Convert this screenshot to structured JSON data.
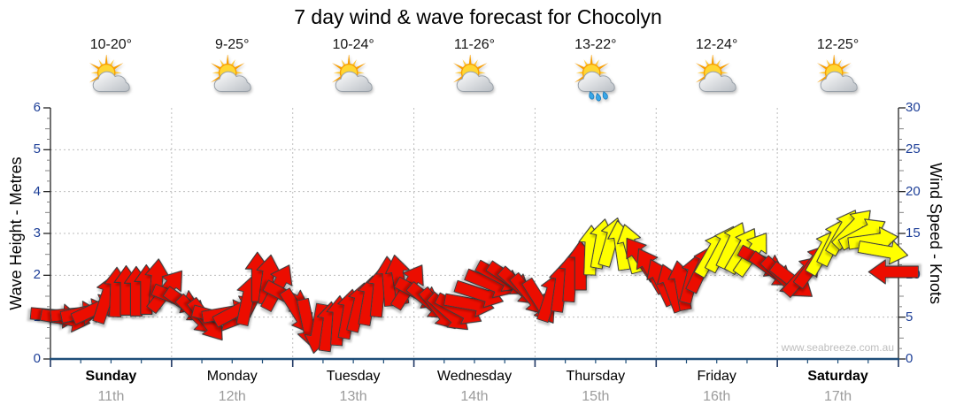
{
  "title": "7 day wind & wave forecast for Chocolyn",
  "watermark": "www.seabreeze.com.au",
  "header": {
    "days": [
      {
        "name": "Sunday",
        "date": "11th",
        "temp_range": "10-20°",
        "icon": "partly-cloudy",
        "weekend": true
      },
      {
        "name": "Monday",
        "date": "12th",
        "temp_range": "9-25°",
        "icon": "partly-cloudy",
        "weekend": false
      },
      {
        "name": "Tuesday",
        "date": "13th",
        "temp_range": "10-24°",
        "icon": "partly-cloudy",
        "weekend": false
      },
      {
        "name": "Wednesday",
        "date": "14th",
        "temp_range": "11-26°",
        "icon": "partly-cloudy",
        "weekend": false
      },
      {
        "name": "Thursday",
        "date": "15th",
        "temp_range": "13-22°",
        "icon": "partly-cloudy-rain",
        "weekend": false
      },
      {
        "name": "Friday",
        "date": "16th",
        "temp_range": "12-24°",
        "icon": "partly-cloudy",
        "weekend": false
      },
      {
        "name": "Saturday",
        "date": "17th",
        "temp_range": "12-25°",
        "icon": "partly-cloudy",
        "weekend": true
      }
    ]
  },
  "colors": {
    "arrow_red": "#ec0800",
    "arrow_yellow": "#ffff00",
    "arrow_outline": "#3a3a3a",
    "axis_number": "#1c3e97",
    "bottom_axis": "#1f4e79",
    "grid": "#bdbdbd",
    "spine": "#222222",
    "minor_tick": "#848484",
    "day_date_grey": "#9b9b9b",
    "watermark_grey": "#bdbdbd"
  },
  "chart_data": {
    "type": "wind-arrows",
    "title": "7 day wind & wave forecast for Chocolyn",
    "y_left": {
      "label": "Wave Height - Metres",
      "min": 0,
      "max": 6,
      "ticks": [
        0,
        1,
        2,
        3,
        4,
        5,
        6
      ]
    },
    "y_right": {
      "label": "Wind Speed - Knots",
      "min": 0,
      "max": 30,
      "ticks": [
        0,
        5,
        10,
        15,
        20,
        25,
        30
      ]
    },
    "categories": [
      "Sunday 11th",
      "Monday 12th",
      "Tuesday 13th",
      "Wednesday 14th",
      "Thursday 15th",
      "Friday 16th",
      "Saturday 17th"
    ],
    "samples_per_day": 12,
    "sample_interval": "2 hours",
    "color_rule": "arrow fill is yellow when wind >= 12.5 knots, otherwise red",
    "grid": "dotted horizontal lines every 5 knots (1 m); dotted vertical lines at day boundaries",
    "legend_position": "none",
    "series": [
      {
        "name": "wind_speed_knots",
        "values": [
          5.2,
          4.8,
          5.4,
          5.6,
          6.0,
          7.2,
          8.0,
          8.2,
          8.1,
          8.3,
          9.0,
          8.2,
          7.2,
          6.4,
          5.2,
          4.6,
          5.0,
          5.5,
          5.8,
          7.0,
          9.8,
          9.5,
          8.6,
          7.4,
          5.6,
          4.2,
          3.6,
          3.9,
          4.6,
          5.4,
          6.2,
          7.0,
          8.0,
          9.3,
          9.5,
          8.7,
          7.8,
          6.8,
          5.9,
          5.5,
          5.9,
          6.6,
          7.8,
          9.0,
          9.8,
          9.5,
          8.6,
          7.6,
          6.8,
          7.4,
          8.6,
          9.8,
          11.2,
          13.0,
          13.8,
          14.0,
          13.6,
          13.2,
          12.0,
          10.6,
          9.2,
          8.5,
          8.8,
          9.6,
          10.8,
          12.6,
          13.2,
          13.6,
          13.0,
          12.6,
          11.6,
          10.6,
          9.8,
          9.3,
          10.0,
          11.2,
          12.8,
          14.0,
          15.2,
          15.6,
          15.0,
          14.2,
          12.9,
          10.4
        ]
      },
      {
        "name": "wind_direction_deg_screen_0up_90right",
        "values": [
          95,
          100,
          85,
          78,
          65,
          18,
          2,
          0,
          0,
          0,
          5,
          38,
          112,
          125,
          135,
          142,
          105,
          80,
          62,
          12,
          0,
          8,
          28,
          118,
          148,
          168,
          190,
          8,
          4,
          10,
          14,
          10,
          6,
          356,
          350,
          32,
          118,
          130,
          140,
          132,
          118,
          100,
          108,
          112,
          118,
          124,
          132,
          140,
          148,
          18,
          8,
          4,
          0,
          2,
          10,
          16,
          352,
          345,
          325,
          330,
          335,
          340,
          350,
          15,
          25,
          30,
          28,
          25,
          30,
          35,
          118,
          126,
          134,
          128,
          42,
          36,
          30,
          26,
          30,
          44,
          62,
          82,
          100,
          270
        ]
      }
    ]
  }
}
